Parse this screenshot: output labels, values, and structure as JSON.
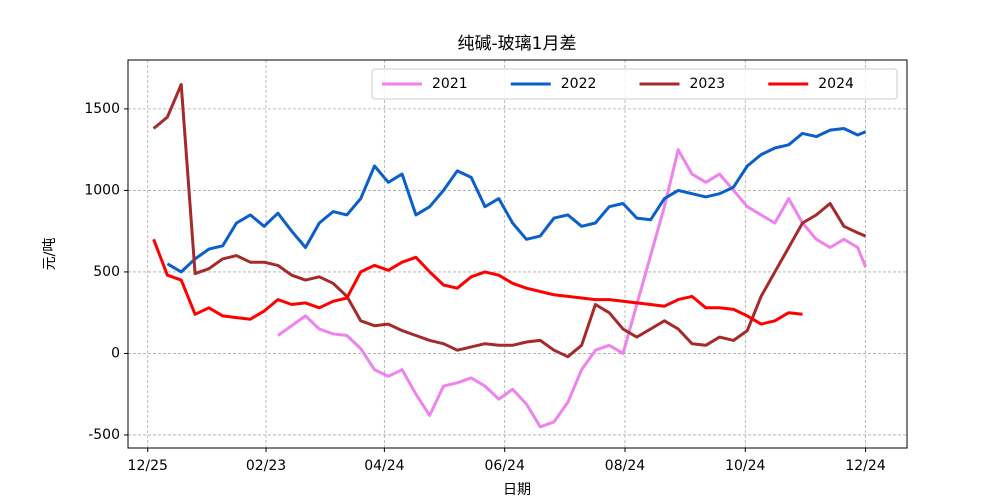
{
  "chart_data": {
    "type": "line",
    "title": "纯碱-玻璃1月差",
    "x_label": "日期",
    "y_label": "元/吨",
    "x": [
      "12/28",
      "01/04",
      "01/11",
      "01/18",
      "01/25",
      "02/01",
      "02/08",
      "02/15",
      "02/22",
      "03/01",
      "03/08",
      "03/15",
      "03/22",
      "03/29",
      "04/05",
      "04/12",
      "04/19",
      "04/26",
      "05/03",
      "05/10",
      "05/17",
      "05/24",
      "05/31",
      "06/07",
      "06/14",
      "06/21",
      "06/28",
      "07/05",
      "07/12",
      "07/19",
      "07/26",
      "08/02",
      "08/09",
      "08/16",
      "08/23",
      "08/30",
      "09/06",
      "09/13",
      "09/20",
      "09/27",
      "10/04",
      "10/11",
      "10/18",
      "10/25",
      "11/01",
      "11/08",
      "11/15",
      "11/22",
      "11/29",
      "12/06",
      "12/13",
      "12/20",
      "12/24"
    ],
    "series": [
      {
        "name": "2021",
        "color": "#ee82ee",
        "values": [
          null,
          null,
          null,
          null,
          null,
          null,
          null,
          null,
          null,
          110,
          170,
          230,
          150,
          120,
          110,
          30,
          -100,
          -140,
          -100,
          -250,
          -380,
          -200,
          -180,
          -150,
          -200,
          -280,
          -220,
          -310,
          -450,
          -420,
          -300,
          -100,
          20,
          50,
          0,
          300,
          600,
          900,
          1250,
          1100,
          1050,
          1100,
          1000,
          900,
          850,
          800,
          950,
          800,
          700,
          650,
          700,
          650,
          530
        ]
      },
      {
        "name": "2022",
        "color": "#0a5fc8",
        "values": [
          null,
          550,
          500,
          580,
          640,
          660,
          800,
          850,
          780,
          860,
          750,
          650,
          800,
          870,
          850,
          950,
          1150,
          1050,
          1100,
          850,
          900,
          1000,
          1120,
          1080,
          900,
          950,
          800,
          700,
          720,
          830,
          850,
          780,
          800,
          900,
          920,
          830,
          820,
          950,
          1000,
          980,
          960,
          980,
          1020,
          1150,
          1220,
          1260,
          1280,
          1350,
          1330,
          1370,
          1380,
          1340,
          1360
        ]
      },
      {
        "name": "2023",
        "color": "#a52a2a",
        "values": [
          1380,
          1450,
          1650,
          490,
          520,
          580,
          600,
          560,
          560,
          540,
          480,
          450,
          470,
          430,
          350,
          200,
          170,
          180,
          140,
          110,
          80,
          60,
          20,
          40,
          60,
          50,
          50,
          70,
          80,
          20,
          -20,
          50,
          300,
          250,
          150,
          100,
          150,
          200,
          150,
          60,
          50,
          100,
          80,
          140,
          350,
          500,
          650,
          800,
          850,
          920,
          780,
          740,
          720
        ]
      },
      {
        "name": "2024",
        "color": "#ff0000",
        "values": [
          700,
          480,
          450,
          240,
          280,
          230,
          220,
          210,
          260,
          330,
          300,
          310,
          280,
          320,
          340,
          500,
          540,
          510,
          560,
          590,
          500,
          420,
          400,
          470,
          500,
          480,
          430,
          400,
          380,
          360,
          350,
          340,
          330,
          330,
          320,
          310,
          300,
          290,
          330,
          350,
          280,
          280,
          270,
          230,
          180,
          200,
          250,
          240,
          null,
          null,
          null,
          null,
          null
        ]
      }
    ],
    "xlim": [
      "12/15",
      "01/14"
    ],
    "xticks": [
      "12/25",
      "02/23",
      "04/24",
      "06/24",
      "08/24",
      "10/24",
      "12/24"
    ],
    "ylim": [
      -580,
      1800
    ],
    "yticks": [
      -500,
      0,
      500,
      1000,
      1500
    ],
    "grid": true,
    "legend": "upper right"
  }
}
